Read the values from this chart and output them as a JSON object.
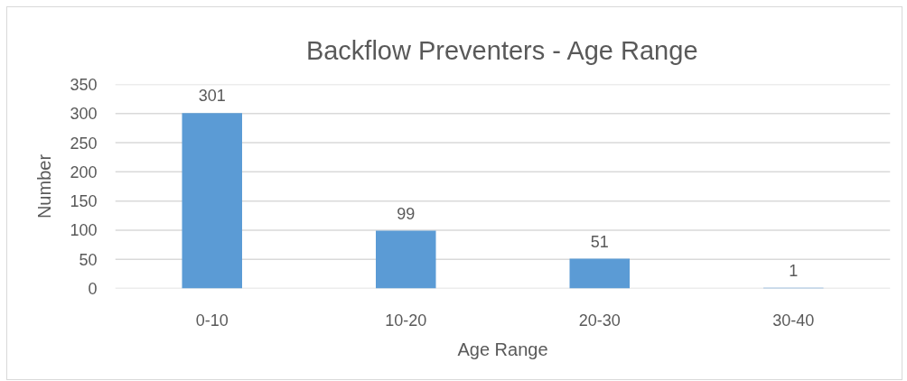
{
  "chart_data": {
    "type": "bar",
    "title": "Backflow Preventers - Age Range",
    "xlabel": "Age Range",
    "ylabel": "Number",
    "categories": [
      "0-10",
      "10-20",
      "20-30",
      "30-40"
    ],
    "values": [
      301,
      99,
      51,
      1
    ],
    "color": "#5b9bd5",
    "ylim": [
      0,
      350
    ],
    "yticks": [
      0,
      50,
      100,
      150,
      200,
      250,
      300,
      350
    ],
    "grid": "y",
    "data_labels": true
  }
}
